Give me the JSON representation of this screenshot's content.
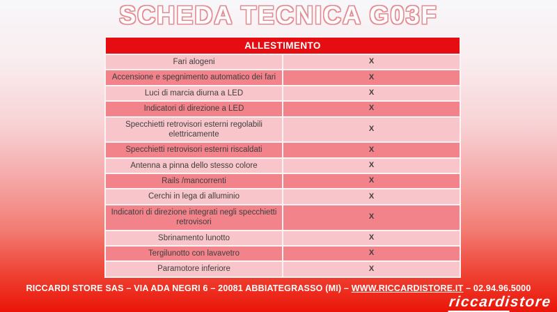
{
  "page": {
    "title": "SCHEDA TECNICA G03F"
  },
  "table": {
    "header": "ALLESTIMENTO",
    "rows": [
      {
        "label": "Fari alogeni",
        "value": "X"
      },
      {
        "label": "Accensione e spegnimento automatico dei fari",
        "value": "X"
      },
      {
        "label": "Luci di marcia diurna a LED",
        "value": "X"
      },
      {
        "label": "Indicatori di direzione a LED",
        "value": "X"
      },
      {
        "label": "Specchietti retrovisori esterni regolabili elettricamente",
        "value": "X"
      },
      {
        "label": "Specchietti retrovisori esterni riscaldati",
        "value": "X"
      },
      {
        "label": "Antenna a pinna dello stesso colore",
        "value": "X"
      },
      {
        "label": "Rails /mancorrenti",
        "value": "X"
      },
      {
        "label": "Cerchi in lega di alluminio",
        "value": "X"
      },
      {
        "label": "Indicatori di direzione integrati negli specchietti retrovisori",
        "value": "X"
      },
      {
        "label": "Sbrinamento lunotto",
        "value": "X"
      },
      {
        "label": "Tergilunotto con lavavetro",
        "value": "X"
      },
      {
        "label": "Paramotore inferiore",
        "value": "X"
      }
    ]
  },
  "footer": {
    "info_prefix": "RICCARDI STORE SAS – VIA ADA NEGRI 6 – 20081 ABBIATEGRASSO (MI) – ",
    "website": "WWW.RICCARDISTORE.IT",
    "info_suffix": " – 02.94.96.5000",
    "logo_primary": "riccardi",
    "logo_secondary": "store"
  },
  "colors": {
    "header_red": "#e60d12",
    "row_light_pink": "#f8c6ca",
    "row_dark_pink": "#f2838a",
    "title_outline": "#e58c93",
    "background_bottom_red": "#ea1508",
    "text_dark": "#3e3e3e"
  }
}
